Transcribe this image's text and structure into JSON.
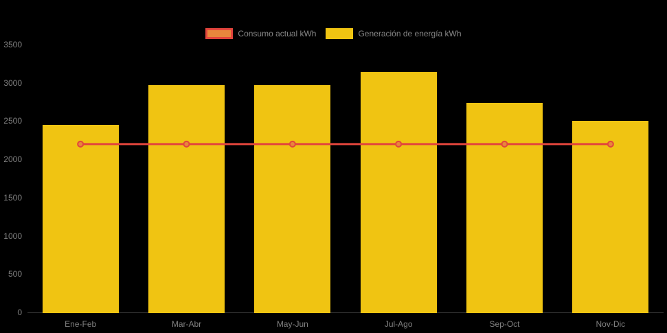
{
  "chart": {
    "background": "#000000",
    "text_color": "#808080",
    "legend_text_color": "#878787"
  },
  "chart_data": {
    "type": "bar",
    "title": "",
    "xlabel": "",
    "ylabel": "",
    "categories": [
      "Ene-Feb",
      "Mar-Abr",
      "May-Jun",
      "Jul-Ago",
      "Sep-Oct",
      "Nov-Dic"
    ],
    "series": [
      {
        "name": "Consumo actual kWh",
        "type": "line",
        "values": [
          2200,
          2200,
          2200,
          2200,
          2200,
          2200
        ],
        "color": "#E2453C",
        "point_fill": "#E8873C"
      },
      {
        "name": "Generación de energía kWh",
        "type": "bar",
        "values": [
          2450,
          2975,
          2975,
          3140,
          2740,
          2500
        ],
        "color": "#F0C412"
      }
    ],
    "ylim": [
      0,
      3500
    ],
    "ytick_step": 500,
    "yticks": [
      "0",
      "500",
      "1000",
      "1500",
      "2000",
      "2500",
      "3000",
      "3500"
    ],
    "legend_position": "top",
    "grid": false
  }
}
